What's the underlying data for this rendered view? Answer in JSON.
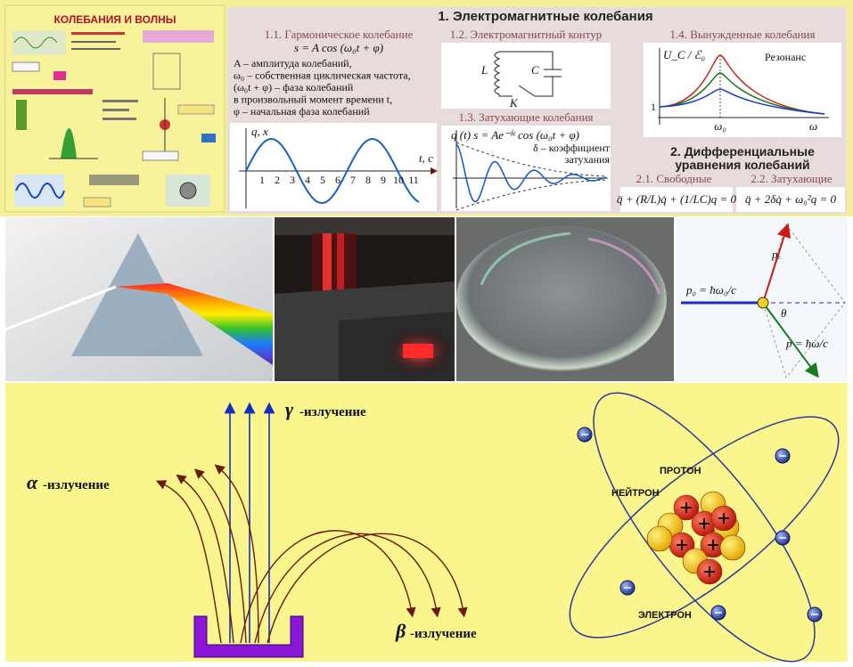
{
  "poster": {
    "title": "КОЛЕБАНИЯ И ВОЛНЫ"
  },
  "em": {
    "title": "1. Электромагнитные колебания",
    "harmonic": {
      "heading": "1.1. Гармоническое колебание",
      "formula": "s = A cos (ω₀t + φ)",
      "lines": [
        "A – амплитуда колебаний,",
        "ω₀ – собственная циклическая частота,",
        "(ω₀t + φ) – фаза колебаний",
        "в произвольный момент времени t,",
        "φ – начальная фаза колебаний"
      ],
      "axis_y": "q, x",
      "axis_x": "t, c",
      "ticks": [
        1,
        2,
        3,
        4,
        5,
        6,
        7,
        8,
        9,
        10,
        11
      ]
    },
    "circuit": {
      "heading": "1.2. Электромагнитный контур",
      "inductor": "L",
      "capacitor": "C",
      "key": "K"
    },
    "damped": {
      "heading": "1.3. Затухающие колебания",
      "formula": "q (t) s = Ae⁻ᵟᵗ cos (ω₀t + φ)",
      "note": [
        "δ – коэффициент",
        "затухания"
      ]
    },
    "forced": {
      "heading": "1.4. Вынужденные колебания",
      "label": "Резонанс",
      "axis_y": "U_C / ℰ₀",
      "axis_x": "ω",
      "peak": "ω₀",
      "one": "1"
    }
  },
  "diff": {
    "title": [
      "2. Дифференциальные",
      "уравнения колебаний"
    ],
    "free": {
      "heading": "2.1. Свободные",
      "formula": "q̈ + (R/L)q̇ + (1/LC)q = 0"
    },
    "damped": {
      "heading": "2.2. Затухающие",
      "formula": "q̈ + 2δq̇ + ω₀²q = 0"
    }
  },
  "vectors": {
    "p0": "p₀ = ħω₀/c",
    "pe": "pₑ",
    "p": "p = ħω/c",
    "theta": "θ"
  },
  "radiation": {
    "gamma": {
      "symbol": "γ",
      "label": "-излучение"
    },
    "alpha": {
      "symbol": "α",
      "label": "-излучение"
    },
    "beta": {
      "symbol": "β",
      "label": "-излучение"
    }
  },
  "atom": {
    "proton": "ПРОТОН",
    "neutron": "НЕЙТРОН",
    "electron": "ЭЛЕКТРОН"
  }
}
